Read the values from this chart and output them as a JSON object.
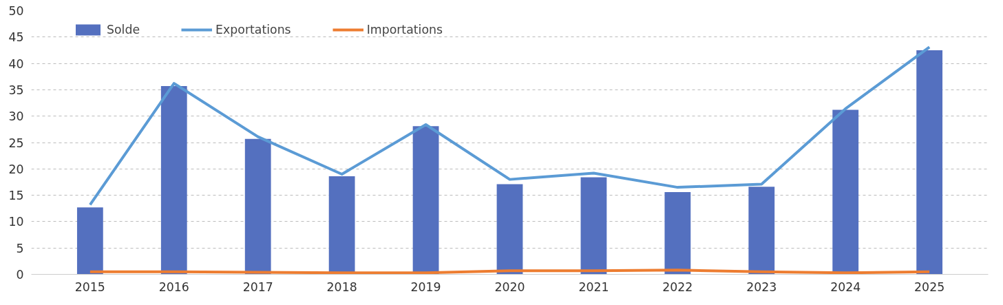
{
  "chart_data": {
    "type": "bar",
    "categories": [
      "2015",
      "2016",
      "2017",
      "2018",
      "2019",
      "2020",
      "2021",
      "2022",
      "2023",
      "2024",
      "2025"
    ],
    "series": [
      {
        "name": "Solde",
        "color": "#5470bf",
        "values": [
          12.7,
          35.7,
          25.7,
          18.6,
          28.1,
          17.1,
          18.4,
          15.6,
          16.6,
          31.2,
          42.5
        ]
      },
      {
        "name": "Exportations",
        "type": "line",
        "color": "#5b9bd5",
        "values": [
          13.2,
          36.2,
          26.1,
          19.0,
          28.4,
          18.0,
          19.2,
          16.5,
          17.1,
          31.4,
          43.1
        ]
      },
      {
        "name": "Importations",
        "type": "line",
        "color": "#ed7d31",
        "values": [
          0.5,
          0.5,
          0.4,
          0.3,
          0.3,
          0.7,
          0.7,
          0.8,
          0.5,
          0.3,
          0.5
        ]
      }
    ],
    "ylim": [
      0,
      50
    ],
    "yticks": [
      0,
      5,
      10,
      15,
      20,
      25,
      30,
      35,
      40,
      45,
      50
    ],
    "grid": "y",
    "legend": "top left",
    "marker": "none",
    "line_style": "solid"
  }
}
